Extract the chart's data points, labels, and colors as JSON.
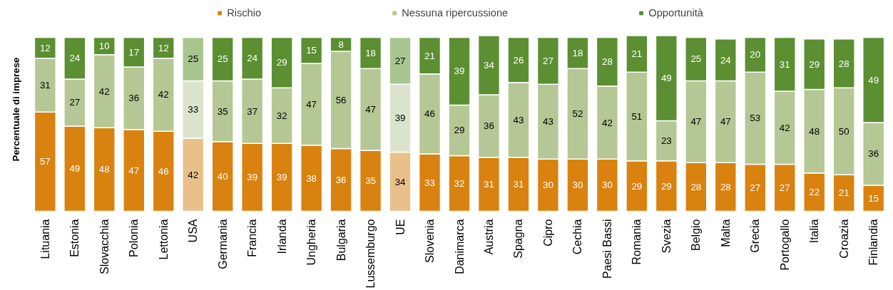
{
  "chart_data": {
    "type": "bar",
    "stacked": true,
    "ylabel": "Percentuale di imprese",
    "data_labels": true,
    "legend": "top",
    "grid": false,
    "tick_labels": "x",
    "categories": [
      "Lituania",
      "Estonia",
      "Slovacchia",
      "Polonia",
      "Lettonia",
      "USA",
      "Germania",
      "Francia",
      "Irlanda",
      "Ungheria",
      "Bulgaria",
      "Lussemburgo",
      "UE",
      "Slovenia",
      "Danimarca",
      "Austria",
      "Spagna",
      "Cipro",
      "Cechia",
      "Paesi Bassi",
      "Romania",
      "Svezia",
      "Belgio",
      "Malta",
      "Grecia",
      "Portogallo",
      "Italia",
      "Croazia",
      "Finlandia"
    ],
    "series": [
      {
        "name": "Rischio",
        "color": "#d9820f",
        "colors": [
          "#d9820f",
          "#d9820f",
          "#d9820f",
          "#d9820f",
          "#d9820f",
          "#e9c089",
          "#d9820f",
          "#d9820f",
          "#d9820f",
          "#d9820f",
          "#d9820f",
          "#d9820f",
          "#e9c089",
          "#d9820f",
          "#d9820f",
          "#d9820f",
          "#d9820f",
          "#d9820f",
          "#d9820f",
          "#d9820f",
          "#d9820f",
          "#d9820f",
          "#d9820f",
          "#d9820f",
          "#d9820f",
          "#d9820f",
          "#d9820f",
          "#d9820f",
          "#d9820f"
        ],
        "values": [
          57,
          49,
          48,
          47,
          46,
          42,
          40,
          39,
          39,
          38,
          36,
          35,
          34,
          33,
          32,
          31,
          31,
          30,
          30,
          30,
          29,
          29,
          28,
          28,
          27,
          27,
          22,
          21,
          15
        ]
      },
      {
        "name": "Nessuna ripercussione",
        "color": "#b5c794",
        "colors": [
          "#b5c794",
          "#b5c794",
          "#b5c794",
          "#b5c794",
          "#b5c794",
          "#dbe3cc",
          "#b5c794",
          "#b5c794",
          "#b5c794",
          "#b5c794",
          "#b5c794",
          "#b5c794",
          "#dbe3cc",
          "#b5c794",
          "#b5c794",
          "#b5c794",
          "#b5c794",
          "#b5c794",
          "#b5c794",
          "#b5c794",
          "#b5c794",
          "#b5c794",
          "#b5c794",
          "#b5c794",
          "#b5c794",
          "#b5c794",
          "#b5c794",
          "#b5c794",
          "#b5c794"
        ],
        "values": [
          31,
          27,
          42,
          36,
          42,
          33,
          35,
          37,
          32,
          47,
          56,
          47,
          39,
          46,
          29,
          36,
          43,
          43,
          52,
          42,
          51,
          23,
          47,
          47,
          53,
          42,
          48,
          50,
          36
        ]
      },
      {
        "name": "Opportunità",
        "color": "#5b8f32",
        "colors": [
          "#5b8f32",
          "#5b8f32",
          "#5b8f32",
          "#5b8f32",
          "#5b8f32",
          "#a9c58f",
          "#5b8f32",
          "#5b8f32",
          "#5b8f32",
          "#5b8f32",
          "#5b8f32",
          "#5b8f32",
          "#a9c58f",
          "#5b8f32",
          "#5b8f32",
          "#5b8f32",
          "#5b8f32",
          "#5b8f32",
          "#5b8f32",
          "#5b8f32",
          "#5b8f32",
          "#5b8f32",
          "#5b8f32",
          "#5b8f32",
          "#5b8f32",
          "#5b8f32",
          "#5b8f32",
          "#5b8f32",
          "#5b8f32"
        ],
        "values": [
          12,
          24,
          10,
          17,
          12,
          25,
          25,
          24,
          29,
          15,
          8,
          18,
          27,
          21,
          39,
          34,
          26,
          27,
          18,
          28,
          21,
          49,
          25,
          24,
          20,
          31,
          29,
          28,
          49
        ]
      }
    ]
  }
}
